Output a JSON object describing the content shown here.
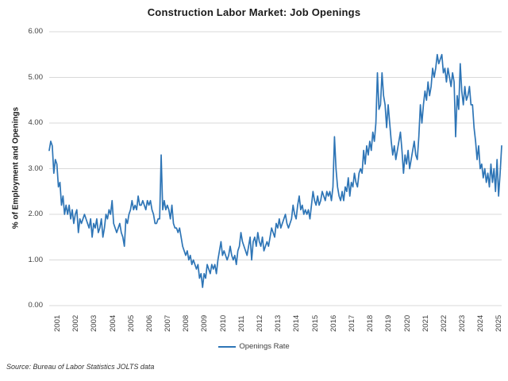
{
  "title": "Construction Labor Market: Job Openings",
  "legend": {
    "label": "Openings Rate"
  },
  "source": "Source: Bureau of Labor Statistics JOLTS data",
  "colors": {
    "line": "#2E75B6",
    "gridline": "#D9D9D9",
    "tick_text": "#404040",
    "title_text": "#1a1a1a"
  },
  "chart_data": {
    "type": "line",
    "title": "Construction Labor Market: Job Openings",
    "xlabel": "",
    "ylabel": "% of Employment and Openings",
    "ylim": [
      0,
      6
    ],
    "grid": "horizontal",
    "legend_position": "bottom",
    "frequency": "monthly",
    "start": "2001-01",
    "y_ticks": [
      {
        "v": 6,
        "label": "6.00"
      },
      {
        "v": 5,
        "label": "5.00"
      },
      {
        "v": 4,
        "label": "4.00"
      },
      {
        "v": 3,
        "label": "3.00"
      },
      {
        "v": 2,
        "label": "2.00"
      },
      {
        "v": 1,
        "label": "1.00"
      },
      {
        "v": 0,
        "label": "0.00"
      }
    ],
    "x_tick_labels": [
      "2001",
      "2002",
      "2003",
      "2004",
      "2005",
      "2006",
      "2007",
      "2008",
      "2009",
      "2010",
      "2011",
      "2012",
      "2013",
      "2014",
      "2015",
      "2016",
      "2017",
      "2018",
      "2019",
      "2020",
      "2021",
      "2022",
      "2023",
      "2024",
      "2025"
    ],
    "series": [
      {
        "name": "Openings Rate",
        "values": [
          3.4,
          3.6,
          3.5,
          2.9,
          3.2,
          3.1,
          2.6,
          2.7,
          2.2,
          2.4,
          2.0,
          2.2,
          2.0,
          2.2,
          1.9,
          2.1,
          1.8,
          2.0,
          2.1,
          1.6,
          1.9,
          1.8,
          1.9,
          2.0,
          1.9,
          1.8,
          1.7,
          1.9,
          1.5,
          1.8,
          1.7,
          1.9,
          1.6,
          1.7,
          1.9,
          1.5,
          1.7,
          2.0,
          1.9,
          2.1,
          2.0,
          2.3,
          1.8,
          1.7,
          1.6,
          1.7,
          1.8,
          1.6,
          1.5,
          1.3,
          1.9,
          1.8,
          2.0,
          2.1,
          2.3,
          2.1,
          2.2,
          2.1,
          2.4,
          2.2,
          2.2,
          2.3,
          2.2,
          2.1,
          2.3,
          2.2,
          2.3,
          2.1,
          2.0,
          1.8,
          1.8,
          1.9,
          1.9,
          3.3,
          2.1,
          2.3,
          2.1,
          2.2,
          2.1,
          1.9,
          2.2,
          1.8,
          1.7,
          1.7,
          1.6,
          1.7,
          1.5,
          1.3,
          1.2,
          1.1,
          1.2,
          1.0,
          1.1,
          0.9,
          1.0,
          0.9,
          0.8,
          0.9,
          0.6,
          0.7,
          0.4,
          0.7,
          0.6,
          0.9,
          0.8,
          0.7,
          0.9,
          0.8,
          0.9,
          0.7,
          1.0,
          1.2,
          1.4,
          1.1,
          1.2,
          1.1,
          1.0,
          1.1,
          1.3,
          1.1,
          1.0,
          1.1,
          0.9,
          1.2,
          1.3,
          1.6,
          1.4,
          1.3,
          1.2,
          1.1,
          1.3,
          1.5,
          1.0,
          1.4,
          1.5,
          1.3,
          1.6,
          1.4,
          1.3,
          1.5,
          1.2,
          1.3,
          1.4,
          1.3,
          1.5,
          1.7,
          1.6,
          1.5,
          1.8,
          1.7,
          1.9,
          1.7,
          1.8,
          1.9,
          2.0,
          1.8,
          1.7,
          1.8,
          1.9,
          2.2,
          2.0,
          1.9,
          2.2,
          2.4,
          2.1,
          2.2,
          2.0,
          2.1,
          2.0,
          2.1,
          1.9,
          2.2,
          2.5,
          2.3,
          2.2,
          2.4,
          2.2,
          2.3,
          2.5,
          2.4,
          2.3,
          2.5,
          2.4,
          2.5,
          2.3,
          2.6,
          3.7,
          3.0,
          2.6,
          2.4,
          2.3,
          2.5,
          2.3,
          2.6,
          2.5,
          2.8,
          2.4,
          2.7,
          2.6,
          2.9,
          2.7,
          2.6,
          2.9,
          3.0,
          2.9,
          3.4,
          3.1,
          3.5,
          3.3,
          3.6,
          3.4,
          3.8,
          3.6,
          4.0,
          5.1,
          4.3,
          4.4,
          5.1,
          4.6,
          4.4,
          3.9,
          4.4,
          4.0,
          3.6,
          3.3,
          3.5,
          3.2,
          3.4,
          3.6,
          3.8,
          3.4,
          2.9,
          3.3,
          3.1,
          3.4,
          3.0,
          3.2,
          3.4,
          3.6,
          3.3,
          3.2,
          3.7,
          4.4,
          4.0,
          4.4,
          4.7,
          4.5,
          4.9,
          4.6,
          4.8,
          5.2,
          5.0,
          5.2,
          5.5,
          5.3,
          5.4,
          5.5,
          5.1,
          5.2,
          4.9,
          5.2,
          5.0,
          4.8,
          5.1,
          4.9,
          3.7,
          4.6,
          4.3,
          5.3,
          4.7,
          4.4,
          4.8,
          4.5,
          4.6,
          4.8,
          4.4,
          4.4,
          3.9,
          3.6,
          3.2,
          3.5,
          3.0,
          3.1,
          2.8,
          3.0,
          2.7,
          2.9,
          2.6,
          3.1,
          2.7,
          3.0,
          2.5,
          3.2,
          2.4,
          2.9,
          3.5
        ]
      }
    ]
  }
}
